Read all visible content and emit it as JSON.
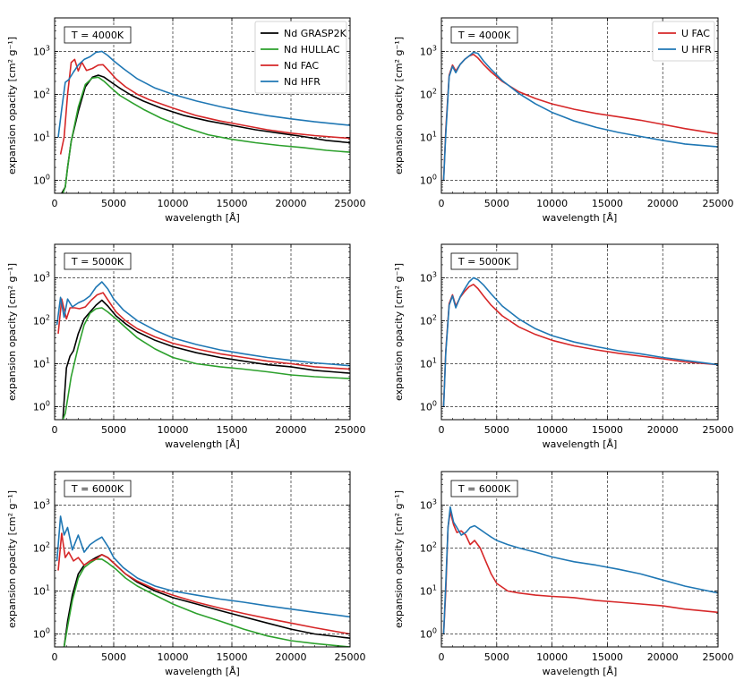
{
  "chart_data": [
    {
      "type": "line",
      "panel": "nd-4000K",
      "annotation": "T = 4000K",
      "xlabel": "wavelength [Å]",
      "ylabel": "expansion opacity [cm² g⁻¹]",
      "xlim": [
        0,
        25000
      ],
      "ylim": [
        0.5,
        6000
      ],
      "yscale": "log",
      "xticks": [
        "0",
        "5000",
        "10000",
        "15000",
        "20000",
        "25000"
      ],
      "grid": true,
      "legend": "top-right",
      "series": [
        {
          "name": "Nd GRASP2K",
          "color": "#000000",
          "x": [
            600,
            900,
            1100,
            1400,
            2000,
            2600,
            3200,
            3700,
            4200,
            4800,
            5500,
            6500,
            7500,
            9000,
            11000,
            13000,
            15000,
            17000,
            19000,
            21000,
            23000,
            25000
          ],
          "y": [
            0.5,
            0.7,
            2,
            8,
            40,
            150,
            250,
            280,
            250,
            190,
            140,
            95,
            70,
            48,
            32,
            24,
            19,
            15,
            12.5,
            10.5,
            8.5,
            7.5
          ]
        },
        {
          "name": "Nd HULLAC",
          "color": "#2ca02c",
          "x": [
            700,
            900,
            1100,
            1400,
            2000,
            2600,
            3200,
            3700,
            4200,
            4800,
            5500,
            6500,
            7500,
            9000,
            11000,
            13000,
            15000,
            17000,
            19000,
            21000,
            23000,
            25000
          ],
          "y": [
            0.5,
            0.7,
            2,
            8,
            50,
            170,
            240,
            250,
            200,
            140,
            95,
            65,
            45,
            28,
            17,
            11.5,
            9,
            7.5,
            6.5,
            5.8,
            5,
            4.5
          ]
        },
        {
          "name": "Nd FAC",
          "color": "#d62728",
          "x": [
            500,
            800,
            1100,
            1400,
            1700,
            2000,
            2300,
            2700,
            3200,
            3700,
            4100,
            4600,
            5200,
            6000,
            7000,
            8000,
            10000,
            12000,
            14000,
            16000,
            18000,
            20000,
            22000,
            25000
          ],
          "y": [
            4,
            10,
            100,
            550,
            650,
            350,
            560,
            360,
            400,
            480,
            490,
            350,
            230,
            150,
            100,
            75,
            48,
            32,
            24,
            19,
            15,
            12.5,
            11,
            9.5
          ]
        },
        {
          "name": "Nd HFR",
          "color": "#1f77b4",
          "x": [
            300,
            600,
            900,
            1200,
            1600,
            2000,
            2500,
            3000,
            3500,
            4000,
            4500,
            5000,
            5800,
            7000,
            8500,
            10000,
            12000,
            14000,
            16000,
            18000,
            20000,
            22000,
            25000
          ],
          "y": [
            10,
            45,
            190,
            220,
            330,
            480,
            650,
            750,
            950,
            1000,
            800,
            600,
            400,
            230,
            140,
            100,
            70,
            52,
            40,
            32,
            27,
            23,
            19
          ]
        }
      ]
    },
    {
      "type": "line",
      "panel": "u-4000K",
      "annotation": "T = 4000K",
      "xlabel": "wavelength [Å]",
      "ylabel": "expansion opacity [cm² g⁻¹]",
      "xlim": [
        0,
        25000
      ],
      "ylim": [
        0.5,
        6000
      ],
      "yscale": "log",
      "xticks": [
        "0",
        "5000",
        "10000",
        "15000",
        "20000",
        "25000"
      ],
      "grid": true,
      "legend": "top-right",
      "series": [
        {
          "name": "U FAC",
          "color": "#d62728",
          "x": [
            200,
            400,
            700,
            1000,
            1300,
            1700,
            2100,
            2500,
            2900,
            3300,
            3800,
            4500,
            5500,
            7000,
            8500,
            10000,
            12000,
            14000,
            16000,
            18000,
            20000,
            22000,
            25000
          ],
          "y": [
            1,
            15,
            280,
            480,
            350,
            500,
            650,
            780,
            850,
            700,
            500,
            330,
            200,
            115,
            80,
            60,
            45,
            36,
            30,
            25,
            20,
            16,
            12
          ]
        },
        {
          "name": "U HFR",
          "color": "#1f77b4",
          "x": [
            200,
            400,
            700,
            1000,
            1300,
            1700,
            2100,
            2500,
            2900,
            3300,
            3800,
            4500,
            5500,
            7000,
            8500,
            10000,
            12000,
            14000,
            16000,
            18000,
            20000,
            22000,
            25000
          ],
          "y": [
            1,
            12,
            260,
            450,
            320,
            500,
            650,
            780,
            950,
            900,
            600,
            380,
            210,
            105,
            60,
            38,
            24,
            17,
            13,
            10.5,
            8.5,
            7,
            6
          ]
        }
      ]
    },
    {
      "type": "line",
      "panel": "nd-5000K",
      "annotation": "T = 5000K",
      "xlabel": "wavelength [Å]",
      "ylabel": "expansion opacity [cm² g⁻¹]",
      "xlim": [
        0,
        25000
      ],
      "ylim": [
        0.5,
        6000
      ],
      "yscale": "log",
      "xticks": [
        "0",
        "5000",
        "10000",
        "15000",
        "20000",
        "25000"
      ],
      "grid": true,
      "series": [
        {
          "name": "Nd GRASP2K",
          "color": "#000000",
          "x": [
            700,
            1000,
            1300,
            1600,
            2000,
            2500,
            3000,
            3500,
            4000,
            4500,
            5200,
            6000,
            7000,
            8500,
            10000,
            12000,
            14000,
            16000,
            18000,
            20000,
            22000,
            25000
          ],
          "y": [
            0.5,
            8,
            15,
            20,
            50,
            110,
            160,
            230,
            300,
            220,
            130,
            85,
            55,
            35,
            25,
            18,
            14,
            11.5,
            9.5,
            8.5,
            7,
            6
          ]
        },
        {
          "name": "Nd HULLAC",
          "color": "#2ca02c",
          "x": [
            700,
            900,
            1100,
            1400,
            2000,
            2500,
            3000,
            3500,
            4000,
            4500,
            5200,
            6000,
            7000,
            8500,
            10000,
            12000,
            14000,
            16000,
            18000,
            20000,
            22000,
            25000
          ],
          "y": [
            0.5,
            0.7,
            1.5,
            5,
            25,
            80,
            150,
            190,
            200,
            160,
            110,
            70,
            40,
            22,
            14,
            10,
            8.5,
            7.5,
            6.5,
            5.5,
            5,
            4.5
          ]
        },
        {
          "name": "Nd FAC",
          "color": "#d62728",
          "x": [
            300,
            600,
            1000,
            1300,
            1700,
            2100,
            2600,
            3100,
            3600,
            4100,
            4600,
            5200,
            6000,
            7000,
            8500,
            10000,
            12000,
            14000,
            16000,
            18000,
            20000,
            22000,
            25000
          ],
          "y": [
            50,
            320,
            110,
            200,
            200,
            190,
            210,
            300,
            400,
            450,
            280,
            160,
            100,
            65,
            42,
            30,
            22,
            17,
            14,
            11.5,
            10,
            8.5,
            7.5
          ]
        },
        {
          "name": "Nd HFR",
          "color": "#1f77b4",
          "x": [
            200,
            500,
            800,
            1100,
            1500,
            2000,
            2500,
            3000,
            3500,
            4000,
            4500,
            5000,
            5800,
            7000,
            8500,
            10000,
            12000,
            14000,
            16000,
            18000,
            20000,
            22000,
            25000
          ],
          "y": [
            80,
            350,
            120,
            320,
            210,
            260,
            300,
            380,
            600,
            800,
            550,
            320,
            180,
            100,
            60,
            40,
            28,
            21,
            17,
            14,
            12,
            10.5,
            9
          ]
        }
      ]
    },
    {
      "type": "line",
      "panel": "u-5000K",
      "annotation": "T = 5000K",
      "xlabel": "wavelength [Å]",
      "ylabel": "expansion opacity [cm² g⁻¹]",
      "xlim": [
        0,
        25000
      ],
      "ylim": [
        0.5,
        6000
      ],
      "yscale": "log",
      "xticks": [
        "0",
        "5000",
        "10000",
        "15000",
        "20000",
        "25000"
      ],
      "grid": true,
      "series": [
        {
          "name": "U FAC",
          "color": "#d62728",
          "x": [
            200,
            400,
            700,
            1000,
            1300,
            1700,
            2100,
            2500,
            2900,
            3300,
            3800,
            4500,
            5500,
            7000,
            8500,
            10000,
            12000,
            14000,
            16000,
            18000,
            20000,
            22000,
            25000
          ],
          "y": [
            1,
            20,
            250,
            400,
            220,
            350,
            480,
            620,
            700,
            560,
            380,
            230,
            130,
            72,
            48,
            35,
            26,
            21,
            17.5,
            15,
            13,
            11,
            9.5
          ]
        },
        {
          "name": "U HFR",
          "color": "#1f77b4",
          "x": [
            200,
            400,
            700,
            1000,
            1300,
            1700,
            2100,
            2500,
            2900,
            3300,
            3800,
            4500,
            5500,
            7000,
            8500,
            10000,
            12000,
            14000,
            16000,
            18000,
            20000,
            22000,
            25000
          ],
          "y": [
            1,
            18,
            230,
            380,
            200,
            360,
            550,
            800,
            1000,
            900,
            680,
            420,
            220,
            110,
            65,
            45,
            32,
            25,
            20,
            17,
            14,
            12,
            9.5
          ]
        }
      ]
    },
    {
      "type": "line",
      "panel": "nd-6000K",
      "annotation": "T = 6000K",
      "xlabel": "wavelength [Å]",
      "ylabel": "expansion opacity [cm² g⁻¹]",
      "xlim": [
        0,
        25000
      ],
      "ylim": [
        0.5,
        6000
      ],
      "yscale": "log",
      "xticks": [
        "0",
        "5000",
        "10000",
        "15000",
        "20000",
        "25000"
      ],
      "grid": true,
      "series": [
        {
          "name": "Nd GRASP2K",
          "color": "#000000",
          "x": [
            800,
            1100,
            1500,
            2000,
            2500,
            3000,
            3500,
            4000,
            4500,
            5200,
            6000,
            7000,
            8500,
            10000,
            12000,
            14000,
            16000,
            18000,
            20000,
            22000,
            25000
          ],
          "y": [
            0.5,
            2,
            8,
            25,
            40,
            50,
            60,
            70,
            60,
            40,
            25,
            16,
            10,
            7,
            5,
            3.5,
            2.5,
            1.8,
            1.3,
            1,
            0.8
          ]
        },
        {
          "name": "Nd HULLAC",
          "color": "#2ca02c",
          "x": [
            800,
            1100,
            1500,
            2000,
            2500,
            3000,
            3500,
            4000,
            4500,
            5200,
            6000,
            7000,
            8500,
            10000,
            12000,
            14000,
            16000,
            18000,
            20000,
            22000,
            25000
          ],
          "y": [
            0.5,
            1.5,
            6,
            20,
            35,
            45,
            55,
            55,
            45,
            32,
            20,
            13,
            8,
            5,
            3,
            2,
            1.3,
            0.9,
            0.7,
            0.6,
            0.5
          ]
        },
        {
          "name": "Nd FAC",
          "color": "#d62728",
          "x": [
            300,
            600,
            900,
            1200,
            1600,
            2000,
            2500,
            3000,
            3500,
            4000,
            4500,
            5200,
            6000,
            7000,
            8500,
            10000,
            12000,
            14000,
            16000,
            18000,
            20000,
            22000,
            25000
          ],
          "y": [
            30,
            220,
            60,
            80,
            50,
            60,
            40,
            50,
            55,
            70,
            60,
            40,
            25,
            17,
            11,
            8,
            5.5,
            4,
            3,
            2.3,
            1.8,
            1.4,
            1
          ]
        },
        {
          "name": "Nd HFR",
          "color": "#1f77b4",
          "x": [
            200,
            500,
            800,
            1100,
            1500,
            2000,
            2500,
            3000,
            3500,
            4000,
            4500,
            5000,
            5800,
            7000,
            8500,
            10000,
            12000,
            14000,
            16000,
            18000,
            20000,
            22000,
            25000
          ],
          "y": [
            50,
            550,
            200,
            300,
            90,
            200,
            80,
            120,
            150,
            180,
            110,
            60,
            35,
            20,
            13,
            10,
            8,
            6.5,
            5.5,
            4.5,
            3.8,
            3.2,
            2.5
          ]
        }
      ]
    },
    {
      "type": "line",
      "panel": "u-6000K",
      "annotation": "T = 6000K",
      "xlabel": "wavelength [Å]",
      "ylabel": "expansion opacity [cm² g⁻¹]",
      "xlim": [
        0,
        25000
      ],
      "ylim": [
        0.5,
        6000
      ],
      "yscale": "log",
      "xticks": [
        "0",
        "5000",
        "10000",
        "15000",
        "20000",
        "25000"
      ],
      "grid": true,
      "series": [
        {
          "name": "U FAC",
          "color": "#d62728",
          "x": [
            200,
            400,
            600,
            800,
            1100,
            1400,
            1800,
            2200,
            2600,
            3000,
            3500,
            4000,
            4500,
            5000,
            6000,
            7000,
            8500,
            10000,
            12000,
            14000,
            16000,
            18000,
            20000,
            22000,
            25000
          ],
          "y": [
            1,
            10,
            300,
            700,
            350,
            230,
            250,
            200,
            120,
            150,
            100,
            50,
            25,
            15,
            10,
            9,
            8,
            7.5,
            7,
            6,
            5.5,
            5,
            4.5,
            3.8,
            3.2
          ]
        },
        {
          "name": "U HFR",
          "color": "#1f77b4",
          "x": [
            200,
            400,
            600,
            800,
            1100,
            1400,
            1800,
            2200,
            2600,
            3000,
            3500,
            4000,
            4500,
            5000,
            6000,
            7000,
            8500,
            10000,
            12000,
            14000,
            16000,
            18000,
            20000,
            22000,
            25000
          ],
          "y": [
            1,
            15,
            300,
            900,
            400,
            300,
            200,
            230,
            300,
            330,
            270,
            220,
            180,
            150,
            120,
            100,
            80,
            62,
            48,
            40,
            32,
            25,
            18,
            13,
            9
          ]
        }
      ]
    }
  ]
}
